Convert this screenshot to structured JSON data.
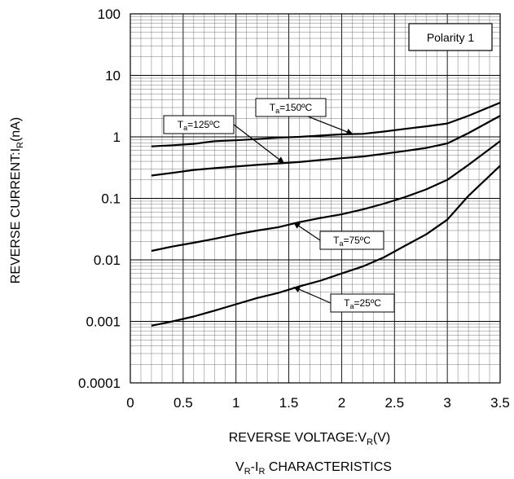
{
  "chart_data": {
    "type": "line",
    "title": "VR-IR CHARACTERISTICS",
    "title_parts": {
      "a": "V",
      "a_sub": "R",
      "dash": "-I",
      "b_sub": "R",
      "rest": " CHARACTERISTICS"
    },
    "xlabel": "REVERSE VOLTAGE:VR(V)",
    "xlabel_parts": {
      "main": "REVERSE VOLTAGE:V",
      "sub": "R",
      "unit": "(V)"
    },
    "ylabel": "REVERSE CURRENT:IR(nA)",
    "ylabel_parts": {
      "main": "REVERSE CURRENT:I",
      "sub": "R",
      "unit": "(nA)"
    },
    "xlim": [
      0,
      3.5
    ],
    "ylim": [
      0.0001,
      100
    ],
    "yscale": "log",
    "grid": true,
    "x_ticks": [
      "0",
      "0.5",
      "1",
      "1.5",
      "2",
      "2.5",
      "3",
      "3.5"
    ],
    "y_ticks": [
      "100",
      "10",
      "1",
      "0.1",
      "0.01",
      "0.001",
      "0.0001"
    ],
    "legend_box": {
      "text": "Polarity 1",
      "placement": "top-right"
    },
    "series": [
      {
        "name": "Ta=150ºC",
        "label_main": "T",
        "label_sub": "a",
        "label_rest": "=150ºC",
        "x": [
          0.2,
          0.4,
          0.6,
          0.8,
          1.0,
          1.2,
          1.4,
          1.6,
          1.8,
          2.0,
          2.2,
          2.4,
          2.6,
          2.8,
          3.0,
          3.2,
          3.5
        ],
        "y": [
          0.7,
          0.73,
          0.77,
          0.85,
          0.88,
          0.92,
          0.97,
          1.0,
          1.05,
          1.1,
          1.12,
          1.22,
          1.35,
          1.48,
          1.65,
          2.2,
          3.6
        ]
      },
      {
        "name": "Ta=125ºC",
        "label_main": "T",
        "label_sub": "a",
        "label_rest": "=125ºC",
        "x": [
          0.2,
          0.4,
          0.6,
          0.8,
          1.0,
          1.2,
          1.4,
          1.6,
          1.8,
          2.0,
          2.2,
          2.4,
          2.6,
          2.8,
          3.0,
          3.2,
          3.5
        ],
        "y": [
          0.235,
          0.26,
          0.29,
          0.31,
          0.33,
          0.35,
          0.37,
          0.39,
          0.42,
          0.45,
          0.48,
          0.53,
          0.59,
          0.66,
          0.78,
          1.15,
          2.2
        ]
      },
      {
        "name": "Ta=75ºC",
        "label_main": "T",
        "label_sub": "a",
        "label_rest": "=75ºC",
        "x": [
          0.2,
          0.4,
          0.6,
          0.8,
          1.0,
          1.2,
          1.4,
          1.6,
          1.8,
          2.0,
          2.2,
          2.4,
          2.6,
          2.8,
          3.0,
          3.2,
          3.5
        ],
        "y": [
          0.014,
          0.0165,
          0.019,
          0.022,
          0.026,
          0.03,
          0.034,
          0.041,
          0.048,
          0.055,
          0.066,
          0.082,
          0.105,
          0.14,
          0.2,
          0.35,
          0.85
        ]
      },
      {
        "name": "Ta=25ºC",
        "label_main": "T",
        "label_sub": "a",
        "label_rest": "=25ºC",
        "x": [
          0.2,
          0.4,
          0.6,
          0.8,
          1.0,
          1.2,
          1.4,
          1.6,
          1.8,
          2.0,
          2.2,
          2.4,
          2.6,
          2.8,
          3.0,
          3.2,
          3.5
        ],
        "y": [
          0.00085,
          0.001,
          0.0012,
          0.0015,
          0.0019,
          0.0024,
          0.0029,
          0.0037,
          0.0046,
          0.006,
          0.0078,
          0.011,
          0.017,
          0.026,
          0.045,
          0.11,
          0.34
        ]
      }
    ],
    "annotations": [
      {
        "series": "Ta=150ºC",
        "arrow_to": [
          2.1,
          1.12
        ]
      },
      {
        "series": "Ta=125ºC",
        "arrow_to": [
          1.45,
          0.38
        ]
      },
      {
        "series": "Ta=75ºC",
        "arrow_to": [
          1.55,
          0.04
        ]
      },
      {
        "series": "Ta=25ºC",
        "arrow_to": [
          1.55,
          0.0036
        ]
      }
    ]
  }
}
